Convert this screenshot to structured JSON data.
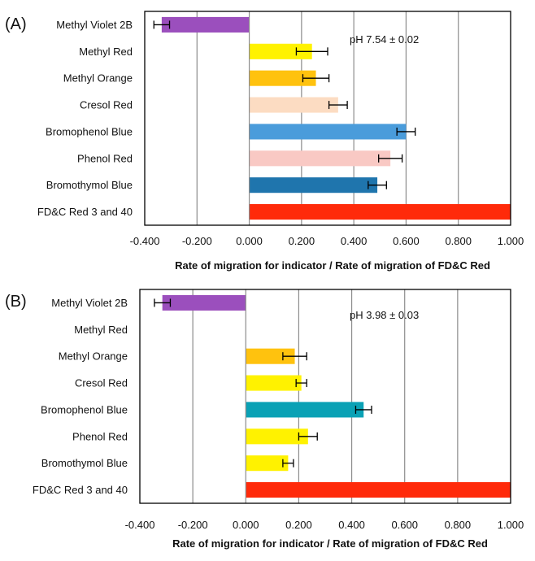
{
  "chart_data": [
    {
      "type": "bar",
      "orientation": "horizontal",
      "panel_label": "(A)",
      "annotation": "pH 7.54 ± 0.02",
      "xlabel": "Rate of migration for indicator / Rate of migration of FD&C Red",
      "xlim": [
        -0.4,
        1.0
      ],
      "xticks": [
        "-0.400",
        "-0.200",
        "0.000",
        "0.200",
        "0.400",
        "0.600",
        "0.800",
        "1.000"
      ],
      "grid": "vertical gridlines at each tick",
      "categories": [
        "Methyl Violet 2B",
        "Methyl Red",
        "Methyl Orange",
        "Cresol Red",
        "Bromophenol Blue",
        "Phenol Red",
        "Bromothymol Blue",
        "FD&C Red 3 and 40"
      ],
      "values": [
        -0.335,
        0.24,
        0.255,
        0.34,
        0.6,
        0.54,
        0.49,
        1.0
      ],
      "errors": [
        0.03,
        0.06,
        0.05,
        0.035,
        0.035,
        0.045,
        0.035,
        null
      ],
      "colors": [
        "#9b4fbd",
        "#fff200",
        "#ffc20e",
        "#fcdcc2",
        "#4a9cdb",
        "#f9c9c4",
        "#1f75ad",
        "#ff2a0a"
      ]
    },
    {
      "type": "bar",
      "orientation": "horizontal",
      "panel_label": "(B)",
      "annotation": "pH 3.98 ± 0.03",
      "xlabel": "Rate of migration for indicator / Rate of migration of FD&C Red",
      "xlim": [
        -0.4,
        1.0
      ],
      "xticks": [
        "-0.400",
        "-0.200",
        "0.000",
        "0.200",
        "0.400",
        "0.600",
        "0.800",
        "1.000"
      ],
      "grid": "vertical gridlines at each tick",
      "categories": [
        "Methyl Violet 2B",
        "Methyl Red",
        "Methyl Orange",
        "Cresol Red",
        "Bromophenol Blue",
        "Phenol Red",
        "Bromothymol Blue",
        "FD&C Red 3 and 40"
      ],
      "values": [
        -0.315,
        0.0,
        0.185,
        0.21,
        0.445,
        0.235,
        0.16,
        1.0
      ],
      "errors": [
        0.03,
        null,
        0.045,
        0.02,
        0.03,
        0.035,
        0.02,
        null
      ],
      "colors": [
        "#9b4fbd",
        "#fff200",
        "#ffc20e",
        "#fff200",
        "#0aa1b5",
        "#fff200",
        "#fff200",
        "#ff2a0a"
      ]
    }
  ]
}
